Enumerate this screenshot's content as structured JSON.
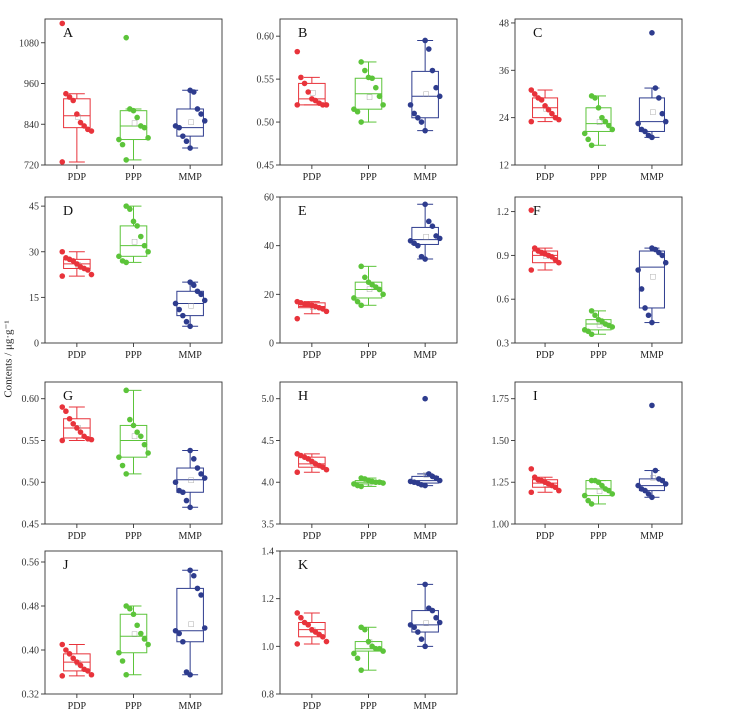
{
  "y_axis_title": "Contents / μg·g⁻¹",
  "colors": {
    "PDP": "#e8333b",
    "PPP": "#5cc43a",
    "MMP": "#2e3c8e",
    "axis": "#333333",
    "mean": "#9a9a9a"
  },
  "chart_data": [
    {
      "type": "box",
      "panel": "A",
      "ylim": [
        720,
        1150
      ],
      "yticks": [
        720,
        840,
        960,
        1080
      ],
      "categories": [
        "PDP",
        "PPP",
        "MMP"
      ],
      "series": [
        {
          "name": "PDP",
          "min": 729,
          "q1": 830,
          "median": 865,
          "q3": 915,
          "max": 930,
          "mean": 865,
          "points": [
            1137,
            930,
            920,
            910,
            870,
            845,
            835,
            825,
            820,
            729
          ]
        },
        {
          "name": "PPP",
          "min": 735,
          "q1": 795,
          "median": 835,
          "q3": 880,
          "max": 885,
          "mean": 845,
          "points": [
            1095,
            885,
            880,
            860,
            835,
            830,
            800,
            795,
            780,
            735
          ]
        },
        {
          "name": "MMP",
          "min": 770,
          "q1": 805,
          "median": 830,
          "q3": 885,
          "max": 940,
          "mean": 848,
          "points": [
            940,
            935,
            885,
            870,
            850,
            835,
            830,
            805,
            790,
            770
          ]
        }
      ]
    },
    {
      "type": "box",
      "panel": "B",
      "ylim": [
        0.45,
        0.62
      ],
      "yticks": [
        0.45,
        0.5,
        0.55,
        0.6
      ],
      "categories": [
        "PDP",
        "PPP",
        "MMP"
      ],
      "series": [
        {
          "name": "PDP",
          "min": 0.52,
          "q1": 0.52,
          "median": 0.527,
          "q3": 0.545,
          "max": 0.552,
          "mean": 0.535,
          "points": [
            0.582,
            0.552,
            0.545,
            0.535,
            0.527,
            0.525,
            0.522,
            0.52,
            0.52,
            0.52
          ]
        },
        {
          "name": "PPP",
          "min": 0.5,
          "q1": 0.515,
          "median": 0.533,
          "q3": 0.551,
          "max": 0.57,
          "mean": 0.53,
          "points": [
            0.57,
            0.56,
            0.552,
            0.551,
            0.54,
            0.53,
            0.52,
            0.515,
            0.512,
            0.5
          ]
        },
        {
          "name": "MMP",
          "min": 0.49,
          "q1": 0.505,
          "median": 0.53,
          "q3": 0.559,
          "max": 0.595,
          "mean": 0.533,
          "points": [
            0.595,
            0.585,
            0.56,
            0.54,
            0.53,
            0.52,
            0.51,
            0.505,
            0.5,
            0.49
          ]
        }
      ]
    },
    {
      "type": "box",
      "panel": "C",
      "ylim": [
        12,
        49
      ],
      "yticks": [
        12,
        24,
        36,
        48
      ],
      "categories": [
        "PDP",
        "PPP",
        "MMP"
      ],
      "series": [
        {
          "name": "PDP",
          "min": 23,
          "q1": 24,
          "median": 26.5,
          "q3": 29,
          "max": 31,
          "mean": 26.5,
          "points": [
            31,
            30,
            29,
            28.5,
            27,
            26,
            25,
            24,
            23.5,
            23
          ]
        },
        {
          "name": "PPP",
          "min": 17,
          "q1": 20.5,
          "median": 22.5,
          "q3": 26.5,
          "max": 29.5,
          "mean": 23,
          "points": [
            29.5,
            29,
            26.5,
            24,
            23,
            22,
            21,
            20,
            18.5,
            17
          ]
        },
        {
          "name": "MMP",
          "min": 19,
          "q1": 20.5,
          "median": 23,
          "q3": 29,
          "max": 31.5,
          "mean": 25.5,
          "points": [
            45.5,
            31.5,
            29,
            25,
            23,
            22.5,
            21,
            20.5,
            19.5,
            19
          ]
        }
      ]
    },
    {
      "type": "box",
      "panel": "D",
      "ylim": [
        0,
        48
      ],
      "yticks": [
        0,
        15,
        30,
        45
      ],
      "categories": [
        "PDP",
        "PPP",
        "MMP"
      ],
      "series": [
        {
          "name": "PDP",
          "min": 22,
          "q1": 24.5,
          "median": 26,
          "q3": 27.5,
          "max": 30,
          "mean": 26,
          "points": [
            30,
            28,
            27.5,
            27,
            26,
            25,
            24.5,
            24,
            22.5,
            22
          ]
        },
        {
          "name": "PPP",
          "min": 26.5,
          "q1": 28.5,
          "median": 32,
          "q3": 38.5,
          "max": 45,
          "mean": 33.5,
          "points": [
            45,
            44,
            40,
            38.5,
            35,
            32,
            30,
            28.5,
            27,
            26.5
          ]
        },
        {
          "name": "MMP",
          "min": 5.5,
          "q1": 9,
          "median": 13,
          "q3": 17,
          "max": 20,
          "mean": 12.5,
          "points": [
            20,
            19,
            17,
            16,
            14,
            13,
            11,
            9,
            7,
            5.5
          ]
        }
      ]
    },
    {
      "type": "box",
      "panel": "E",
      "ylim": [
        0,
        60
      ],
      "yticks": [
        0,
        20,
        40,
        60
      ],
      "categories": [
        "PDP",
        "PPP",
        "MMP"
      ],
      "series": [
        {
          "name": "PDP",
          "min": 12,
          "q1": 14.5,
          "median": 15,
          "q3": 16.5,
          "max": 17,
          "mean": 15,
          "points": [
            17,
            16.5,
            16,
            16,
            15.5,
            15,
            14.5,
            14,
            13,
            10
          ]
        },
        {
          "name": "PPP",
          "min": 15.5,
          "q1": 18.5,
          "median": 22,
          "q3": 25,
          "max": 31.5,
          "mean": 22.5,
          "points": [
            31.5,
            27,
            25,
            24,
            23,
            22,
            20,
            18.5,
            17,
            15.5
          ]
        },
        {
          "name": "MMP",
          "min": 34.5,
          "q1": 40.5,
          "median": 42.5,
          "q3": 47.5,
          "max": 57,
          "mean": 44,
          "points": [
            57,
            50,
            48,
            44,
            43,
            42,
            41,
            40,
            35.5,
            34.5
          ]
        }
      ]
    },
    {
      "type": "box",
      "panel": "F",
      "ylim": [
        0.3,
        1.3
      ],
      "yticks": [
        0.3,
        0.6,
        0.9,
        1.2
      ],
      "categories": [
        "PDP",
        "PPP",
        "MMP"
      ],
      "series": [
        {
          "name": "PDP",
          "min": 0.8,
          "q1": 0.85,
          "median": 0.9,
          "q3": 0.93,
          "max": 0.95,
          "mean": 0.9,
          "points": [
            1.21,
            0.95,
            0.93,
            0.92,
            0.91,
            0.9,
            0.89,
            0.87,
            0.85,
            0.8
          ]
        },
        {
          "name": "PPP",
          "min": 0.36,
          "q1": 0.39,
          "median": 0.43,
          "q3": 0.46,
          "max": 0.52,
          "mean": 0.43,
          "points": [
            0.52,
            0.49,
            0.46,
            0.45,
            0.43,
            0.42,
            0.41,
            0.39,
            0.38,
            0.36
          ]
        },
        {
          "name": "MMP",
          "min": 0.44,
          "q1": 0.54,
          "median": 0.82,
          "q3": 0.93,
          "max": 0.95,
          "mean": 0.76,
          "points": [
            0.95,
            0.94,
            0.92,
            0.9,
            0.85,
            0.8,
            0.67,
            0.54,
            0.49,
            0.44
          ]
        }
      ]
    },
    {
      "type": "box",
      "panel": "G",
      "ylim": [
        0.45,
        0.62
      ],
      "yticks": [
        0.45,
        0.5,
        0.55,
        0.6
      ],
      "categories": [
        "PDP",
        "PPP",
        "MMP"
      ],
      "series": [
        {
          "name": "PDP",
          "min": 0.55,
          "q1": 0.553,
          "median": 0.565,
          "q3": 0.576,
          "max": 0.59,
          "mean": 0.566,
          "points": [
            0.59,
            0.585,
            0.576,
            0.57,
            0.565,
            0.56,
            0.555,
            0.552,
            0.551,
            0.55
          ]
        },
        {
          "name": "PPP",
          "min": 0.51,
          "q1": 0.53,
          "median": 0.55,
          "q3": 0.568,
          "max": 0.61,
          "mean": 0.556,
          "points": [
            0.61,
            0.575,
            0.568,
            0.56,
            0.555,
            0.545,
            0.535,
            0.53,
            0.52,
            0.51
          ]
        },
        {
          "name": "MMP",
          "min": 0.47,
          "q1": 0.488,
          "median": 0.503,
          "q3": 0.517,
          "max": 0.538,
          "mean": 0.503,
          "points": [
            0.538,
            0.528,
            0.517,
            0.51,
            0.505,
            0.5,
            0.49,
            0.488,
            0.478,
            0.47
          ]
        }
      ]
    },
    {
      "type": "box",
      "panel": "H",
      "ylim": [
        3.5,
        5.2
      ],
      "yticks": [
        3.5,
        4.0,
        4.5,
        5.0
      ],
      "categories": [
        "PDP",
        "PPP",
        "MMP"
      ],
      "series": [
        {
          "name": "PDP",
          "min": 4.12,
          "q1": 4.18,
          "median": 4.22,
          "q3": 4.3,
          "max": 4.34,
          "mean": 4.24,
          "points": [
            4.34,
            4.32,
            4.3,
            4.28,
            4.25,
            4.22,
            4.2,
            4.18,
            4.15,
            4.12
          ]
        },
        {
          "name": "PPP",
          "min": 3.95,
          "q1": 3.98,
          "median": 4.0,
          "q3": 4.02,
          "max": 4.05,
          "mean": 4.0,
          "points": [
            4.05,
            4.04,
            4.02,
            4.01,
            4.0,
            4.0,
            3.99,
            3.98,
            3.96,
            3.95
          ]
        },
        {
          "name": "MMP",
          "min": 3.96,
          "q1": 3.99,
          "median": 4.02,
          "q3": 4.07,
          "max": 4.1,
          "mean": 4.1,
          "points": [
            5.0,
            4.1,
            4.07,
            4.05,
            4.02,
            4.01,
            4.0,
            3.99,
            3.97,
            3.96
          ]
        }
      ]
    },
    {
      "type": "box",
      "panel": "I",
      "ylim": [
        1.0,
        1.85
      ],
      "yticks": [
        1.0,
        1.25,
        1.5,
        1.75
      ],
      "categories": [
        "PDP",
        "PPP",
        "MMP"
      ],
      "series": [
        {
          "name": "PDP",
          "min": 1.19,
          "q1": 1.22,
          "median": 1.245,
          "q3": 1.265,
          "max": 1.28,
          "mean": 1.245,
          "points": [
            1.33,
            1.28,
            1.265,
            1.26,
            1.25,
            1.24,
            1.23,
            1.22,
            1.2,
            1.19
          ]
        },
        {
          "name": "PPP",
          "min": 1.12,
          "q1": 1.17,
          "median": 1.21,
          "q3": 1.26,
          "max": 1.26,
          "mean": 1.2,
          "points": [
            1.26,
            1.26,
            1.25,
            1.23,
            1.21,
            1.2,
            1.18,
            1.17,
            1.14,
            1.12
          ]
        },
        {
          "name": "MMP",
          "min": 1.16,
          "q1": 1.2,
          "median": 1.23,
          "q3": 1.27,
          "max": 1.32,
          "mean": 1.28,
          "points": [
            1.71,
            1.32,
            1.27,
            1.26,
            1.24,
            1.23,
            1.21,
            1.2,
            1.18,
            1.16
          ]
        }
      ]
    },
    {
      "type": "box",
      "panel": "J",
      "ylim": [
        0.32,
        0.58
      ],
      "yticks": [
        0.32,
        0.4,
        0.48,
        0.56
      ],
      "categories": [
        "PDP",
        "PPP",
        "MMP"
      ],
      "series": [
        {
          "name": "PDP",
          "min": 0.353,
          "q1": 0.362,
          "median": 0.378,
          "q3": 0.393,
          "max": 0.41,
          "mean": 0.378,
          "points": [
            0.41,
            0.4,
            0.393,
            0.385,
            0.378,
            0.372,
            0.365,
            0.362,
            0.355,
            0.353
          ]
        },
        {
          "name": "PPP",
          "min": 0.355,
          "q1": 0.395,
          "median": 0.425,
          "q3": 0.465,
          "max": 0.48,
          "mean": 0.43,
          "points": [
            0.48,
            0.475,
            0.465,
            0.445,
            0.43,
            0.42,
            0.41,
            0.395,
            0.38,
            0.355
          ]
        },
        {
          "name": "MMP",
          "min": 0.355,
          "q1": 0.415,
          "median": 0.435,
          "q3": 0.512,
          "max": 0.545,
          "mean": 0.448,
          "points": [
            0.545,
            0.535,
            0.512,
            0.5,
            0.44,
            0.435,
            0.43,
            0.415,
            0.36,
            0.355
          ]
        }
      ]
    },
    {
      "type": "box",
      "panel": "K",
      "ylim": [
        0.8,
        1.4
      ],
      "yticks": [
        0.8,
        1.0,
        1.2,
        1.4
      ],
      "categories": [
        "PDP",
        "PPP",
        "MMP"
      ],
      "series": [
        {
          "name": "PDP",
          "min": 1.01,
          "q1": 1.04,
          "median": 1.07,
          "q3": 1.1,
          "max": 1.14,
          "mean": 1.07,
          "points": [
            1.14,
            1.12,
            1.1,
            1.09,
            1.07,
            1.06,
            1.05,
            1.04,
            1.02,
            1.01
          ]
        },
        {
          "name": "PPP",
          "min": 0.9,
          "q1": 0.98,
          "median": 0.99,
          "q3": 1.02,
          "max": 1.08,
          "mean": 1.02,
          "points": [
            1.08,
            1.07,
            1.02,
            1.0,
            0.99,
            0.99,
            0.98,
            0.97,
            0.95,
            0.9
          ]
        },
        {
          "name": "MMP",
          "min": 1.0,
          "q1": 1.06,
          "median": 1.09,
          "q3": 1.15,
          "max": 1.26,
          "mean": 1.1,
          "points": [
            1.26,
            1.16,
            1.15,
            1.12,
            1.1,
            1.09,
            1.08,
            1.06,
            1.03,
            1.0
          ]
        }
      ]
    }
  ]
}
